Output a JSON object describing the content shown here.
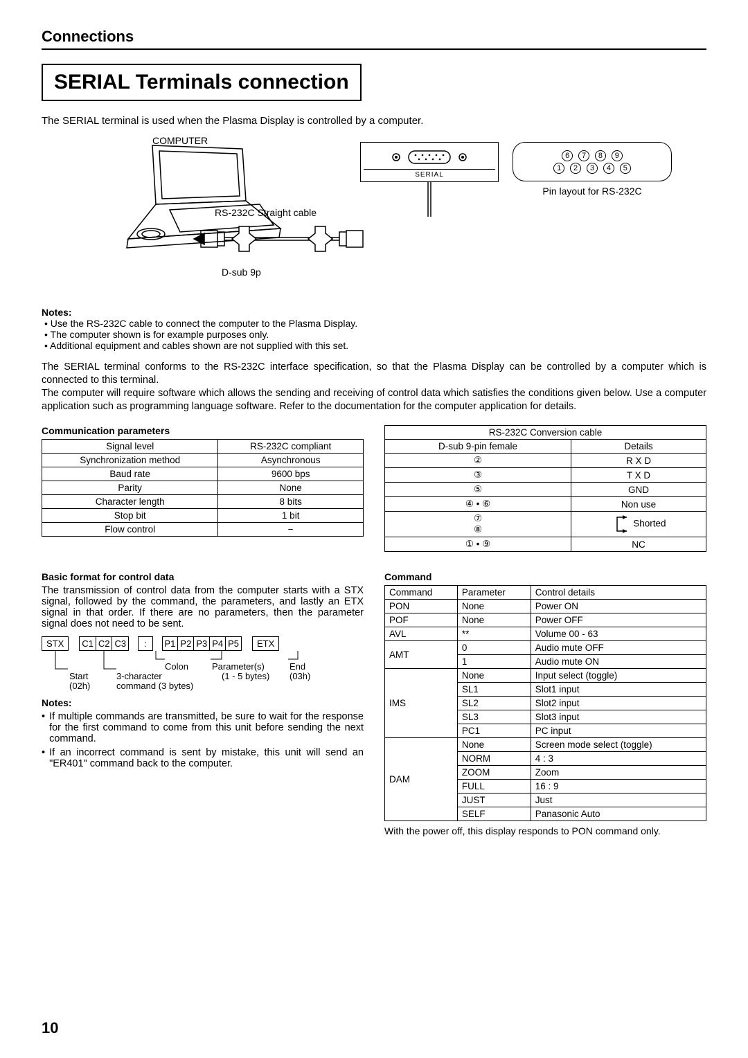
{
  "section_header": "Connections",
  "title": "SERIAL Terminals connection",
  "intro": "The SERIAL terminal is used when the Plasma Display is controlled by a computer.",
  "diagram": {
    "computer_label": "COMPUTER",
    "cable_label": "RS-232C Straight cable",
    "dsub_label": "D-sub 9p",
    "serial_label": "SERIAL",
    "pin_caption": "Pin layout for RS-232C",
    "pins_top": [
      "6",
      "7",
      "8",
      "9"
    ],
    "pins_bottom": [
      "1",
      "2",
      "3",
      "4",
      "5"
    ]
  },
  "notes_head": "Notes:",
  "notes": [
    "Use the RS-232C cable to connect the computer to the Plasma Display.",
    "The computer shown is for example purposes only.",
    "Additional equipment and cables shown are not supplied with this set."
  ],
  "para": "The SERIAL terminal conforms to the RS-232C interface specification, so that the Plasma Display can be controlled by a computer which is connected to this terminal.\nThe computer will require software which allows the sending and receiving of control data which satisfies the conditions given below. Use a computer application such as programming language software. Refer to the documentation for the computer application for details.",
  "comm_params": {
    "heading": "Communication parameters",
    "rows": [
      [
        "Signal level",
        "RS-232C compliant"
      ],
      [
        "Synchronization method",
        "Asynchronous"
      ],
      [
        "Baud rate",
        "9600 bps"
      ],
      [
        "Parity",
        "None"
      ],
      [
        "Character length",
        "8 bits"
      ],
      [
        "Stop bit",
        "1 bit"
      ],
      [
        "Flow control",
        "−"
      ]
    ]
  },
  "conversion": {
    "header": "RS-232C Conversion cable",
    "col1": "D-sub 9-pin female",
    "col2": "Details",
    "rows": [
      {
        "pins": "②",
        "detail": "R X D"
      },
      {
        "pins": "③",
        "detail": "T X D"
      },
      {
        "pins": "⑤",
        "detail": "GND"
      },
      {
        "pins": "④ • ⑥",
        "detail": "Non use"
      },
      {
        "pins": "⑦\n⑧",
        "detail": "Shorted",
        "shorted": true
      },
      {
        "pins": "① • ⑨",
        "detail": "NC"
      }
    ]
  },
  "basic_format": {
    "heading": "Basic format for control data",
    "text": "The transmission of control data from the computer starts with a STX signal, followed by the command, the parameters, and lastly an ETX signal in that order. If there are no parameters, then the parameter signal does not need to be sent.",
    "stx": "STX",
    "c1": "C1",
    "c2": "C2",
    "c3": "C3",
    "colon": ":",
    "p1": "P1",
    "p2": "P2",
    "p3": "P3",
    "p4": "P4",
    "p5": "P5",
    "etx": "ETX",
    "start_lbl": "Start",
    "start_hex": "(02h)",
    "cmd_lbl": "3-character",
    "cmd_lbl2": "command (3 bytes)",
    "colon_lbl": "Colon",
    "param_lbl": "Parameter(s)",
    "param_bytes": "(1 - 5 bytes)",
    "end_lbl": "End",
    "end_hex": "(03h)"
  },
  "notes2_head": "Notes:",
  "notes2": [
    "If multiple commands are transmitted, be sure to wait for the response for the first command to come from this unit before sending the next command.",
    "If an incorrect command is sent by mistake, this unit will send an \"ER401\" command back to the computer."
  ],
  "command": {
    "heading": "Command",
    "headers": [
      "Command",
      "Parameter",
      "Control details"
    ],
    "rows": [
      {
        "cmd": "PON",
        "params": [
          "None"
        ],
        "details": [
          "Power ON"
        ]
      },
      {
        "cmd": "POF",
        "params": [
          "None"
        ],
        "details": [
          "Power OFF"
        ]
      },
      {
        "cmd": "AVL",
        "params": [
          "**"
        ],
        "details": [
          "Volume 00 - 63"
        ]
      },
      {
        "cmd": "AMT",
        "params": [
          "0",
          "1"
        ],
        "details": [
          "Audio mute OFF",
          "Audio mute ON"
        ]
      },
      {
        "cmd": "IMS",
        "params": [
          "None",
          "SL1",
          "SL2",
          "SL3",
          "PC1"
        ],
        "details": [
          "Input select (toggle)",
          "Slot1 input",
          "Slot2 input",
          "Slot3 input",
          "PC input"
        ]
      },
      {
        "cmd": "DAM",
        "params": [
          "None",
          "NORM",
          "ZOOM",
          "FULL",
          "JUST",
          "SELF"
        ],
        "details": [
          "Screen mode select (toggle)",
          "4 : 3",
          "Zoom",
          "16 : 9",
          "Just",
          "Panasonic Auto"
        ]
      }
    ],
    "after": "With the power off, this display responds to PON command only."
  },
  "page_num": "10"
}
